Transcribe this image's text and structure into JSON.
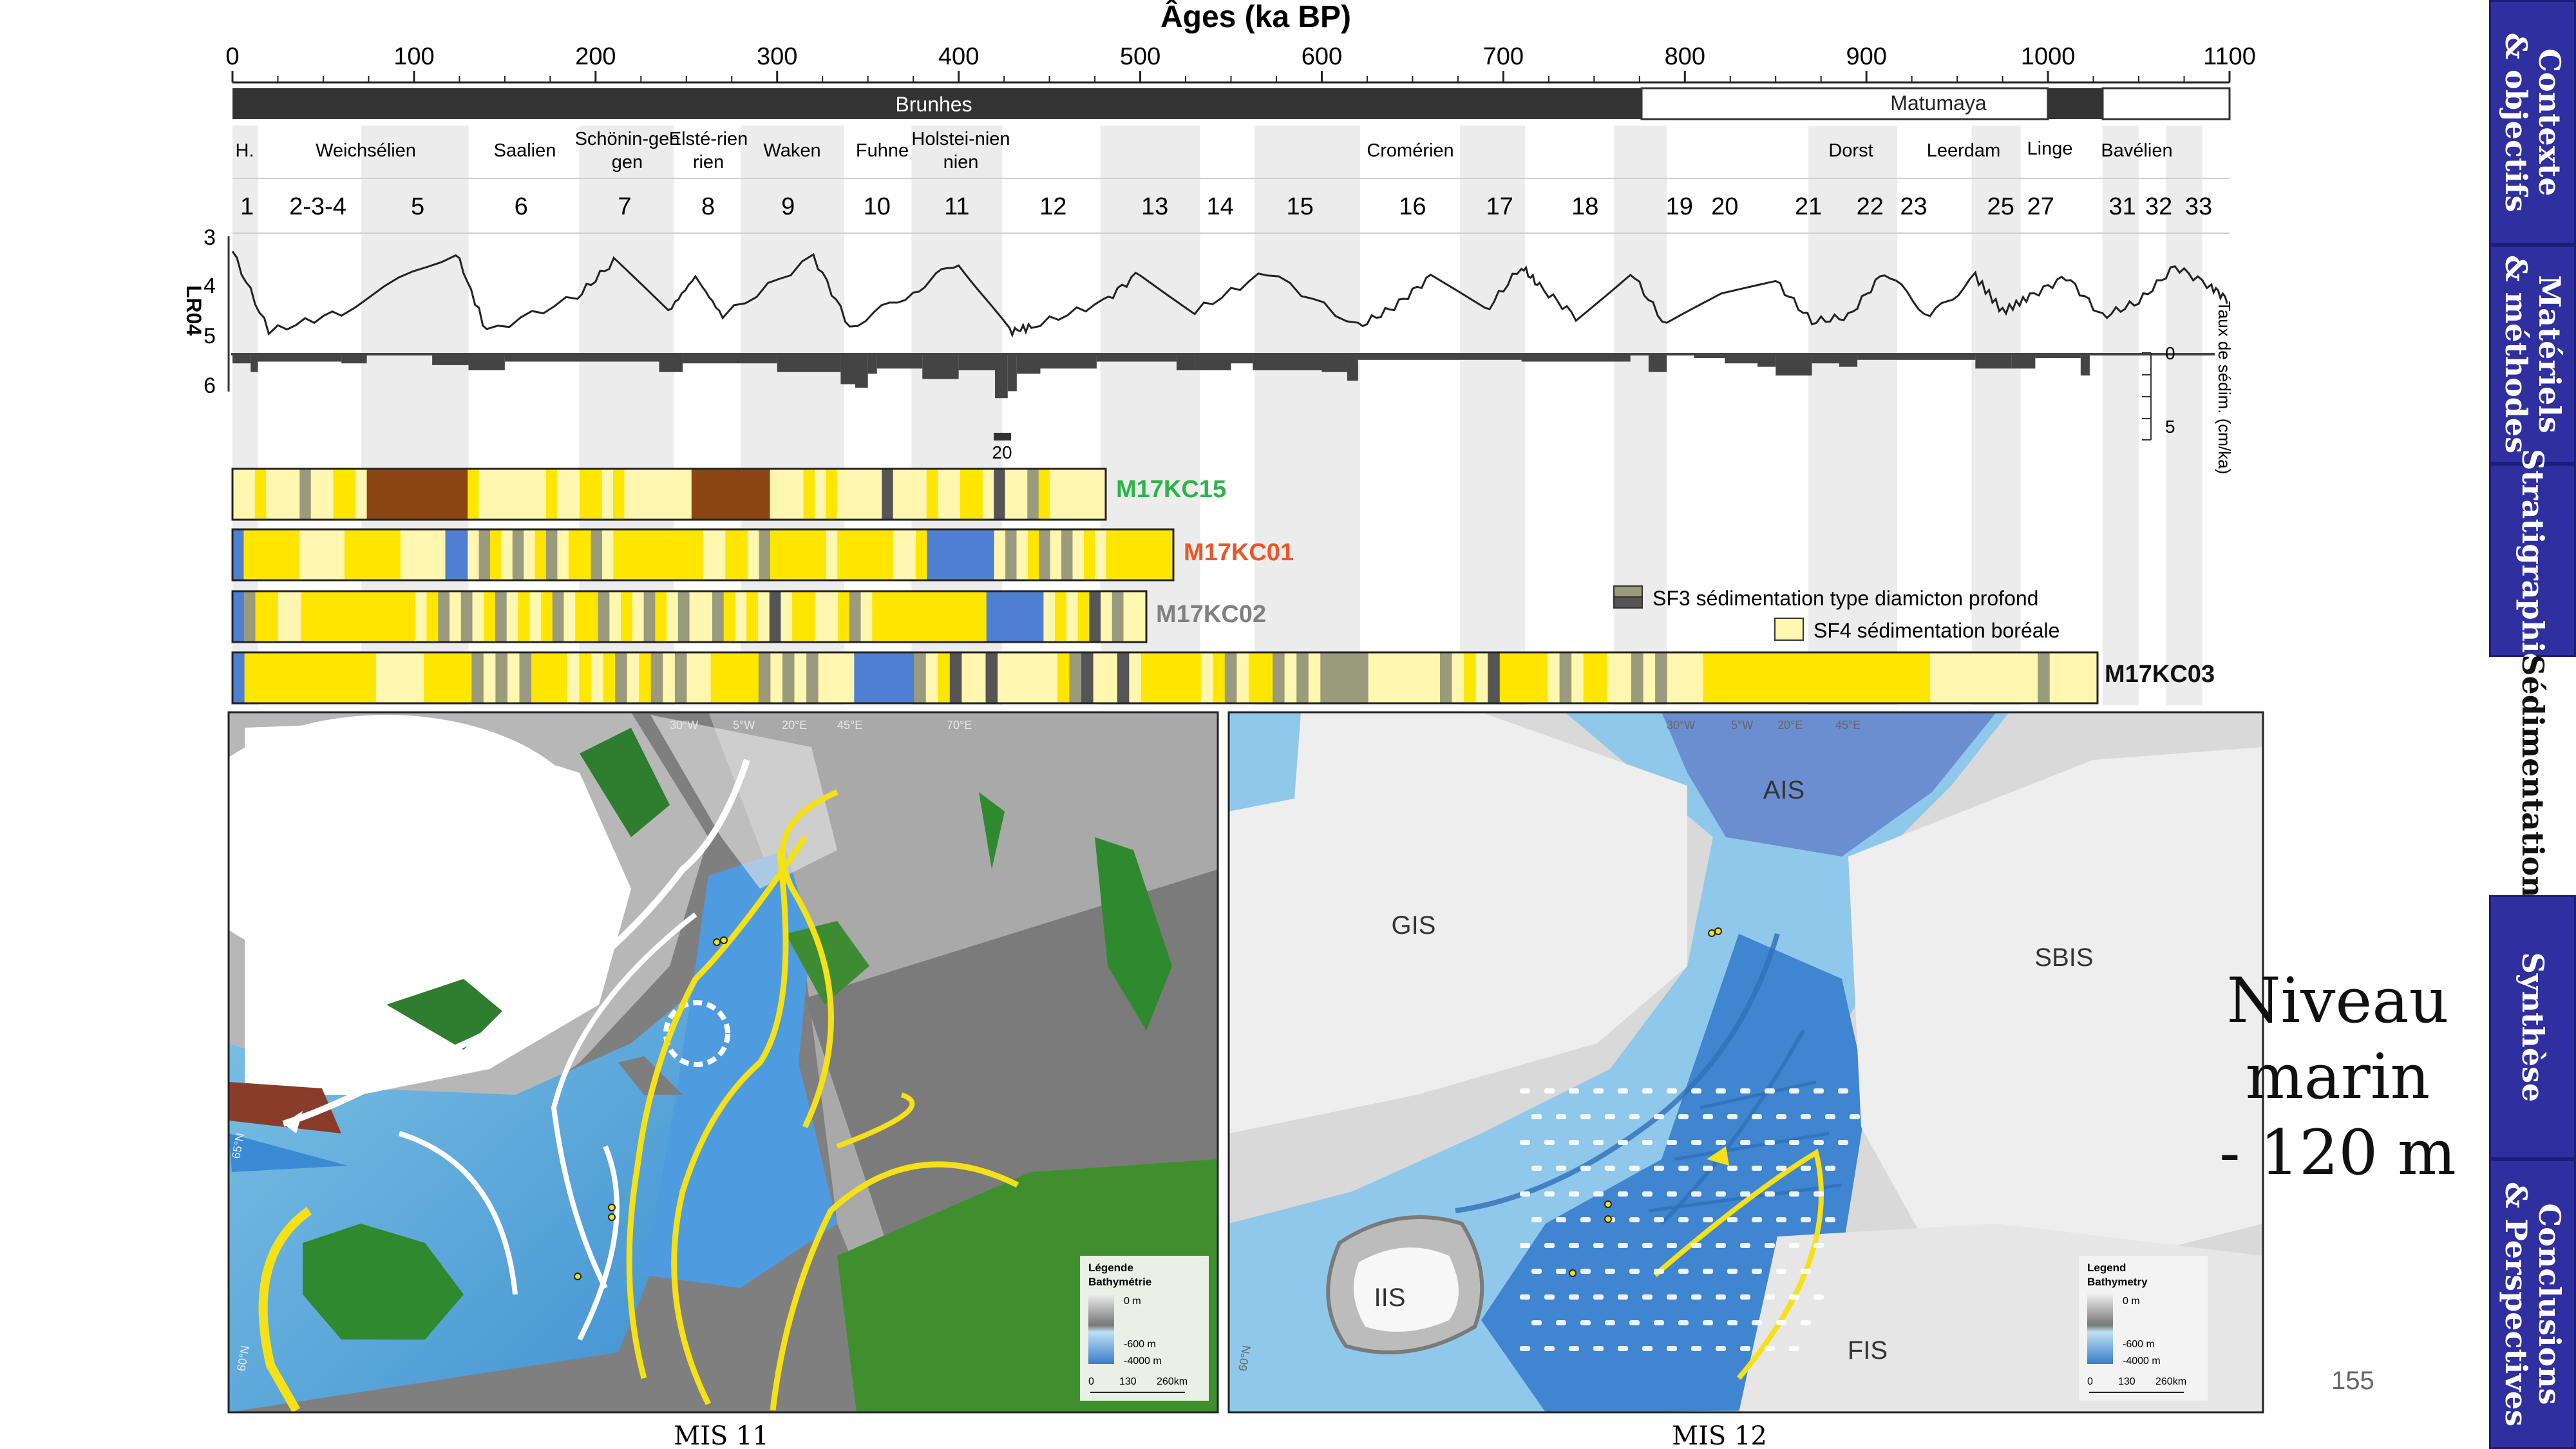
{
  "axis": {
    "title": "Âges (ka BP)",
    "ticks": [
      "0",
      "100",
      "200",
      "300",
      "400",
      "500",
      "600",
      "700",
      "800",
      "900",
      "1000",
      "1100"
    ]
  },
  "magnetic": {
    "brunhes": "Brunhes",
    "matumaya": "Matumaya"
  },
  "stages": [
    "H.",
    "Weichsélien",
    "Saalien",
    "Schönin-gen",
    "Elsté-rien",
    "Waken",
    "Fuhne",
    "Holstei-nien",
    "Cromérien",
    "Dorst",
    "Leerdam",
    "Linge",
    "Bavélien"
  ],
  "mis_numbers": [
    "1",
    "2-3-4",
    "5",
    "6",
    "7",
    "8",
    "9",
    "10",
    "11",
    "12",
    "13",
    "14",
    "15",
    "16",
    "17",
    "18",
    "19",
    "20",
    "21",
    "22",
    "23",
    "25",
    "27",
    "31",
    "32",
    "33"
  ],
  "lr04": {
    "label": "LR04",
    "ticks": [
      "3",
      "4",
      "5",
      "6"
    ]
  },
  "sedim": {
    "label": "Taux de sédim. (cm/ka)",
    "ticks": [
      "0",
      "5"
    ],
    "clip_value": "20"
  },
  "cores": [
    "M17KC15",
    "M17KC01",
    "M17KC02",
    "M17KC03"
  ],
  "legend_facies": {
    "sf3": "SF3 sédimentation type diamicton profond",
    "sf4": "SF4 sédimentation boréale"
  },
  "map_left": {
    "caption": "MIS 11",
    "legend_title": "Légende",
    "legend_sub": "Bathymétrie",
    "legend_levels": [
      "0 m",
      "-600 m",
      "-4000 m"
    ],
    "scale": [
      "0",
      "130",
      "260km"
    ],
    "graticule": [
      "30°W",
      "5°W",
      "20°E",
      "45°E",
      "70°E",
      "65°N",
      "60°N"
    ]
  },
  "map_right": {
    "caption": "MIS 12",
    "legend_title": "Legend",
    "legend_sub": "Bathymetry",
    "legend_levels": [
      "0 m",
      "-600 m",
      "-4000 m"
    ],
    "scale": [
      "0",
      "130",
      "260km"
    ],
    "ice_sheets": [
      "AIS",
      "GIS",
      "SBIS",
      "IIS",
      "FIS"
    ],
    "graticule": [
      "30°W",
      "5°W",
      "20°E",
      "45°E",
      "60°N"
    ]
  },
  "sea_level": {
    "line1": "Niveau",
    "line2": "marin",
    "line3": "- 120 m"
  },
  "page_number": "155",
  "nav": [
    {
      "label": "Contexte\n& objectifs",
      "active": false
    },
    {
      "label": "Matériels\n& méthodes",
      "active": false
    },
    {
      "label": "Stratigraphie",
      "active": false
    },
    {
      "label": "Sédimentation",
      "active": true
    },
    {
      "label": "Synthèse",
      "active": false
    },
    {
      "label": "Conclusions\n& Perspectives",
      "active": false
    }
  ],
  "colors": {
    "sf3_grey": "#9a9a7c",
    "sf3_dark": "#555555",
    "sf4_pale": "#fff6b0",
    "yellow": "#ffe600",
    "brown": "#8b4513",
    "blue": "#4f7fd0",
    "nav_blue": "#2f2f9f",
    "core_kc15": "#2db34a",
    "core_kc01": "#e8562a",
    "core_kc02": "#808080",
    "core_kc03": "#111111"
  }
}
